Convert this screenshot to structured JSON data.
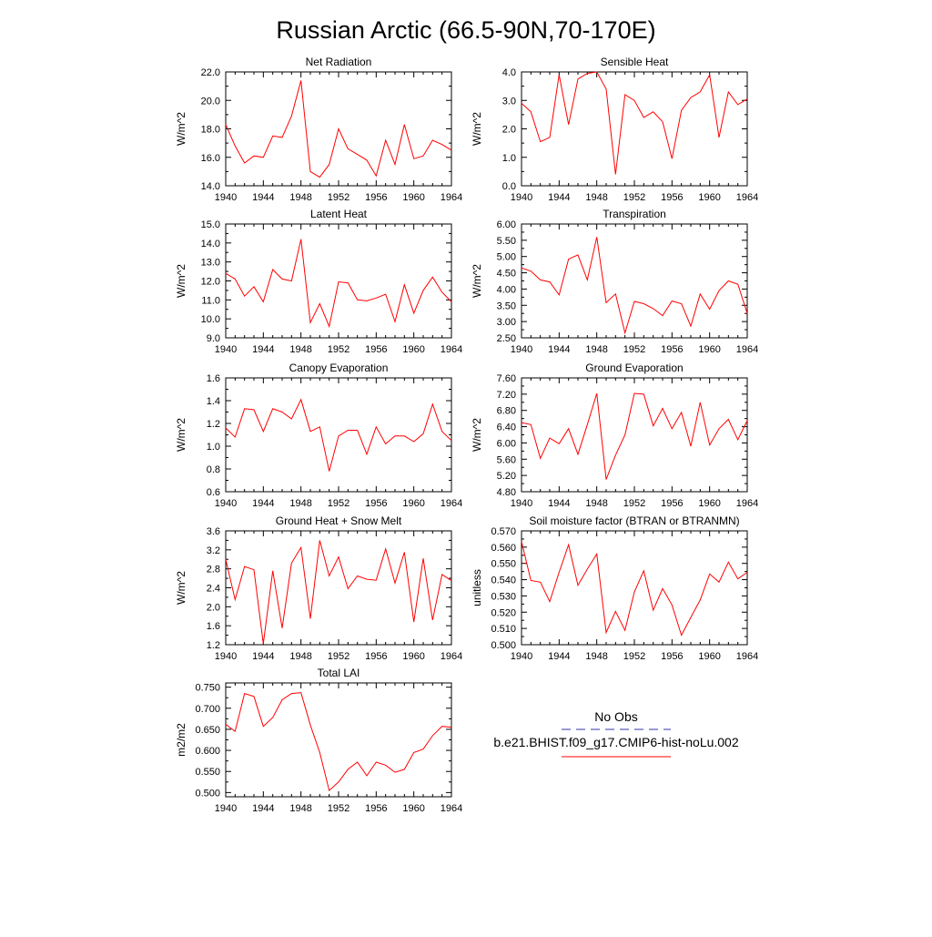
{
  "title": "Russian Arctic (66.5-90N,70-170E)",
  "colors": {
    "series": "#ff0000",
    "obs": "#3333aa",
    "axis": "#000000"
  },
  "legend": {
    "obs_label": "No Obs",
    "model_label": "b.e21.BHIST.f09_g17.CMIP6-hist-noLu.002"
  },
  "chart_data": [
    {
      "type": "line",
      "title": "Net Radiation",
      "ylabel": "W/m^2",
      "xlim": [
        1940,
        1964
      ],
      "ylim": [
        14.0,
        22.0
      ],
      "xticks": [
        1940,
        1944,
        1948,
        1952,
        1956,
        1960,
        1964
      ],
      "xtick_labels": [
        "1940",
        "1944",
        "1948",
        "1952",
        "1956",
        "1960",
        "1964"
      ],
      "yticks": [
        14.0,
        16.0,
        18.0,
        20.0,
        22.0
      ],
      "ytick_labels": [
        "14.0",
        "16.0",
        "18.0",
        "20.0",
        "22.0"
      ],
      "x": [
        1940,
        1941,
        1942,
        1943,
        1944,
        1945,
        1946,
        1947,
        1948,
        1949,
        1950,
        1951,
        1952,
        1953,
        1954,
        1955,
        1956,
        1957,
        1958,
        1959,
        1960,
        1961,
        1962,
        1963,
        1964
      ],
      "values": [
        18.3,
        16.8,
        15.6,
        16.1,
        16.0,
        17.5,
        17.4,
        18.9,
        21.4,
        15.0,
        14.6,
        15.5,
        18.0,
        16.6,
        16.2,
        15.8,
        14.7,
        17.2,
        15.5,
        18.3,
        15.9,
        16.1,
        17.2,
        16.9,
        16.5
      ]
    },
    {
      "type": "line",
      "title": "Sensible Heat",
      "ylabel": "W/m^2",
      "xlim": [
        1940,
        1964
      ],
      "ylim": [
        0.0,
        4.0
      ],
      "xticks": [
        1940,
        1944,
        1948,
        1952,
        1956,
        1960,
        1964
      ],
      "xtick_labels": [
        "1940",
        "1944",
        "1948",
        "1952",
        "1956",
        "1960",
        "1964"
      ],
      "yticks": [
        0.0,
        1.0,
        2.0,
        3.0,
        4.0
      ],
      "ytick_labels": [
        "0.0",
        "1.0",
        "2.0",
        "3.0",
        "4.0"
      ],
      "x": [
        1940,
        1941,
        1942,
        1943,
        1944,
        1945,
        1946,
        1947,
        1948,
        1949,
        1950,
        1951,
        1952,
        1953,
        1954,
        1955,
        1956,
        1957,
        1958,
        1959,
        1960,
        1961,
        1962,
        1963,
        1964
      ],
      "values": [
        2.9,
        2.6,
        1.55,
        1.7,
        3.9,
        2.15,
        3.75,
        3.95,
        4.0,
        3.4,
        0.4,
        3.2,
        3.0,
        2.4,
        2.6,
        2.25,
        0.95,
        2.65,
        3.1,
        3.3,
        3.9,
        1.7,
        3.3,
        2.85,
        3.05
      ]
    },
    {
      "type": "line",
      "title": "Latent Heat",
      "ylabel": "W/m^2",
      "xlim": [
        1940,
        1964
      ],
      "ylim": [
        9.0,
        15.0
      ],
      "xticks": [
        1940,
        1944,
        1948,
        1952,
        1956,
        1960,
        1964
      ],
      "xtick_labels": [
        "1940",
        "1944",
        "1948",
        "1952",
        "1956",
        "1960",
        "1964"
      ],
      "yticks": [
        9.0,
        10.0,
        11.0,
        12.0,
        13.0,
        14.0,
        15.0
      ],
      "ytick_labels": [
        "9.0",
        "10.0",
        "11.0",
        "12.0",
        "13.0",
        "14.0",
        "15.0"
      ],
      "x": [
        1940,
        1941,
        1942,
        1943,
        1944,
        1945,
        1946,
        1947,
        1948,
        1949,
        1950,
        1951,
        1952,
        1953,
        1954,
        1955,
        1956,
        1957,
        1958,
        1959,
        1960,
        1961,
        1962,
        1963,
        1964
      ],
      "values": [
        12.4,
        12.1,
        11.2,
        11.7,
        10.9,
        12.6,
        12.1,
        12.0,
        14.2,
        9.8,
        10.8,
        9.6,
        11.95,
        11.9,
        11.0,
        10.95,
        11.1,
        11.3,
        9.85,
        11.8,
        10.3,
        11.5,
        12.2,
        11.4,
        10.9
      ]
    },
    {
      "type": "line",
      "title": "Transpiration",
      "ylabel": "W/m^2",
      "xlim": [
        1940,
        1964
      ],
      "ylim": [
        2.5,
        6.0
      ],
      "xticks": [
        1940,
        1944,
        1948,
        1952,
        1956,
        1960,
        1964
      ],
      "xtick_labels": [
        "1940",
        "1944",
        "1948",
        "1952",
        "1956",
        "1960",
        "1964"
      ],
      "yticks": [
        2.5,
        3.0,
        3.5,
        4.0,
        4.5,
        5.0,
        5.5,
        6.0
      ],
      "ytick_labels": [
        "2.50",
        "3.00",
        "3.50",
        "4.00",
        "4.50",
        "5.00",
        "5.50",
        "6.00"
      ],
      "x": [
        1940,
        1941,
        1942,
        1943,
        1944,
        1945,
        1946,
        1947,
        1948,
        1949,
        1950,
        1951,
        1952,
        1953,
        1954,
        1955,
        1956,
        1957,
        1958,
        1959,
        1960,
        1961,
        1962,
        1963,
        1964
      ],
      "values": [
        4.65,
        4.55,
        4.28,
        4.22,
        3.82,
        4.92,
        5.05,
        4.28,
        5.6,
        3.58,
        3.85,
        2.65,
        3.62,
        3.55,
        3.4,
        3.18,
        3.63,
        3.55,
        2.86,
        3.85,
        3.38,
        3.95,
        4.25,
        4.15,
        3.25
      ]
    },
    {
      "type": "line",
      "title": "Canopy Evaporation",
      "ylabel": "W/m^2",
      "xlim": [
        1940,
        1964
      ],
      "ylim": [
        0.6,
        1.6
      ],
      "xticks": [
        1940,
        1944,
        1948,
        1952,
        1956,
        1960,
        1964
      ],
      "xtick_labels": [
        "1940",
        "1944",
        "1948",
        "1952",
        "1956",
        "1960",
        "1964"
      ],
      "yticks": [
        0.6,
        0.8,
        1.0,
        1.2,
        1.4,
        1.6
      ],
      "ytick_labels": [
        "0.6",
        "0.8",
        "1.0",
        "1.2",
        "1.4",
        "1.6"
      ],
      "x": [
        1940,
        1941,
        1942,
        1943,
        1944,
        1945,
        1946,
        1947,
        1948,
        1949,
        1950,
        1951,
        1952,
        1953,
        1954,
        1955,
        1956,
        1957,
        1958,
        1959,
        1960,
        1961,
        1962,
        1963,
        1964
      ],
      "values": [
        1.16,
        1.08,
        1.33,
        1.32,
        1.13,
        1.33,
        1.3,
        1.24,
        1.41,
        1.13,
        1.17,
        0.78,
        1.09,
        1.14,
        1.14,
        0.93,
        1.17,
        1.02,
        1.09,
        1.09,
        1.04,
        1.11,
        1.37,
        1.13,
        1.05
      ]
    },
    {
      "type": "line",
      "title": "Ground Evaporation",
      "ylabel": "W/m^2",
      "xlim": [
        1940,
        1964
      ],
      "ylim": [
        4.8,
        7.6
      ],
      "xticks": [
        1940,
        1944,
        1948,
        1952,
        1956,
        1960,
        1964
      ],
      "xtick_labels": [
        "1940",
        "1944",
        "1948",
        "1952",
        "1956",
        "1960",
        "1964"
      ],
      "yticks": [
        4.8,
        5.2,
        5.6,
        6.0,
        6.4,
        6.8,
        7.2,
        7.6
      ],
      "ytick_labels": [
        "4.80",
        "5.20",
        "5.60",
        "6.00",
        "6.40",
        "6.80",
        "7.20",
        "7.60"
      ],
      "x": [
        1940,
        1941,
        1942,
        1943,
        1944,
        1945,
        1946,
        1947,
        1948,
        1949,
        1950,
        1951,
        1952,
        1953,
        1954,
        1955,
        1956,
        1957,
        1958,
        1959,
        1960,
        1961,
        1962,
        1963,
        1964
      ],
      "values": [
        6.5,
        6.45,
        5.62,
        6.12,
        5.98,
        6.35,
        5.72,
        6.45,
        7.22,
        5.1,
        5.7,
        6.2,
        7.22,
        7.2,
        6.42,
        6.85,
        6.35,
        6.75,
        5.92,
        7.0,
        5.95,
        6.35,
        6.58,
        6.08,
        6.55
      ]
    },
    {
      "type": "line",
      "title": "Ground Heat + Snow Melt",
      "ylabel": "W/m^2",
      "xlim": [
        1940,
        1964
      ],
      "ylim": [
        1.2,
        3.6
      ],
      "xticks": [
        1940,
        1944,
        1948,
        1952,
        1956,
        1960,
        1964
      ],
      "xtick_labels": [
        "1940",
        "1944",
        "1948",
        "1952",
        "1956",
        "1960",
        "1964"
      ],
      "yticks": [
        1.2,
        1.6,
        2.0,
        2.4,
        2.8,
        3.2,
        3.6
      ],
      "ytick_labels": [
        "1.2",
        "1.6",
        "2.0",
        "2.4",
        "2.8",
        "3.2",
        "3.6"
      ],
      "x": [
        1940,
        1941,
        1942,
        1943,
        1944,
        1945,
        1946,
        1947,
        1948,
        1949,
        1950,
        1951,
        1952,
        1953,
        1954,
        1955,
        1956,
        1957,
        1958,
        1959,
        1960,
        1961,
        1962,
        1963,
        1964
      ],
      "values": [
        3.0,
        2.15,
        2.85,
        2.78,
        1.22,
        2.76,
        1.55,
        2.92,
        3.25,
        1.75,
        3.4,
        2.65,
        3.05,
        2.38,
        2.65,
        2.58,
        2.56,
        3.22,
        2.5,
        3.15,
        1.68,
        3.02,
        1.72,
        2.68,
        2.55
      ]
    },
    {
      "type": "line",
      "title": "Soil moisture factor (BTRAN or BTRANMN)",
      "ylabel": "unitless",
      "xlim": [
        1940,
        1964
      ],
      "ylim": [
        0.5,
        0.57
      ],
      "xticks": [
        1940,
        1944,
        1948,
        1952,
        1956,
        1960,
        1964
      ],
      "xtick_labels": [
        "1940",
        "1944",
        "1948",
        "1952",
        "1956",
        "1960",
        "1964"
      ],
      "yticks": [
        0.5,
        0.51,
        0.52,
        0.53,
        0.54,
        0.55,
        0.56,
        0.57
      ],
      "ytick_labels": [
        "0.500",
        "0.510",
        "0.520",
        "0.530",
        "0.540",
        "0.550",
        "0.560",
        "0.570"
      ],
      "x": [
        1940,
        1941,
        1942,
        1943,
        1944,
        1945,
        1946,
        1947,
        1948,
        1949,
        1950,
        1951,
        1952,
        1953,
        1954,
        1955,
        1956,
        1957,
        1958,
        1959,
        1960,
        1961,
        1962,
        1963,
        1964
      ],
      "values": [
        0.5635,
        0.5395,
        0.5385,
        0.5265,
        0.5445,
        0.5615,
        0.5365,
        0.5465,
        0.5558,
        0.5075,
        0.5205,
        0.5088,
        0.5325,
        0.5455,
        0.5212,
        0.5345,
        0.5245,
        0.5058,
        0.5168,
        0.5275,
        0.5435,
        0.5385,
        0.5508,
        0.5405,
        0.5445
      ]
    },
    {
      "type": "line",
      "title": "Total LAI",
      "ylabel": "m2/m2",
      "xlim": [
        1940,
        1964
      ],
      "ylim": [
        0.49,
        0.76
      ],
      "xticks": [
        1940,
        1944,
        1948,
        1952,
        1956,
        1960,
        1964
      ],
      "xtick_labels": [
        "1940",
        "1944",
        "1948",
        "1952",
        "1956",
        "1960",
        "1964"
      ],
      "yticks": [
        0.5,
        0.55,
        0.6,
        0.65,
        0.7,
        0.75
      ],
      "ytick_labels": [
        "0.500",
        "0.550",
        "0.600",
        "0.650",
        "0.700",
        "0.750"
      ],
      "x": [
        1940,
        1941,
        1942,
        1943,
        1944,
        1945,
        1946,
        1947,
        1948,
        1949,
        1950,
        1951,
        1952,
        1953,
        1954,
        1955,
        1956,
        1957,
        1958,
        1959,
        1960,
        1961,
        1962,
        1963,
        1964
      ],
      "values": [
        0.662,
        0.645,
        0.735,
        0.728,
        0.657,
        0.678,
        0.72,
        0.735,
        0.737,
        0.66,
        0.595,
        0.505,
        0.525,
        0.555,
        0.572,
        0.54,
        0.572,
        0.565,
        0.548,
        0.555,
        0.595,
        0.603,
        0.635,
        0.657,
        0.655
      ]
    }
  ]
}
